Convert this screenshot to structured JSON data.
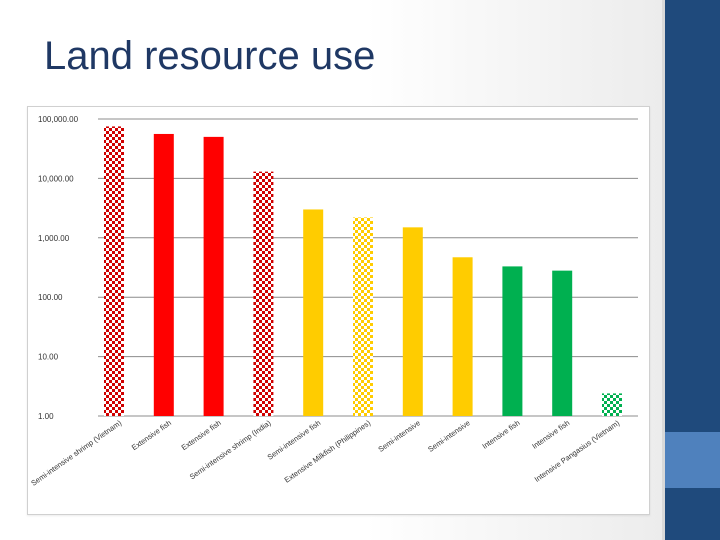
{
  "slide": {
    "title": "Land resource use"
  },
  "chart_data": {
    "type": "bar",
    "scale": "log",
    "ylim": [
      1,
      100000
    ],
    "grid": true,
    "yticks": [
      "100,000.00",
      "10,000.00",
      "1,000.00",
      "100.00",
      "10.00",
      "1.00"
    ],
    "ytick_values": [
      100000,
      10000,
      1000,
      100,
      10,
      1
    ],
    "categories": [
      "Semi-intensive shrimp (Vietnam)",
      "Extensive fish",
      "Extensive fish",
      "Semi-intensive shrimp (India)",
      "Semi-intensive fish",
      "Extensive Milkfish (Philippines)",
      "Semi-intensive",
      "Semi-intensive",
      "Intensive fish",
      "Intensive fish",
      "Intensive Pangasius (Vietnam)"
    ],
    "values": [
      75000,
      56000,
      50000,
      13000,
      3000,
      2200,
      1500,
      470,
      330,
      280,
      2.4
    ],
    "colors": [
      "#d00000",
      "#ff0000",
      "#ff0000",
      "#d00000",
      "#ffcc00",
      "#ffcc00",
      "#ffcc00",
      "#ffcc00",
      "#00b050",
      "#00b050",
      "#00b050"
    ],
    "patterns": [
      "checker",
      "solid",
      "solid",
      "checker",
      "solid",
      "checker",
      "solid",
      "solid",
      "solid",
      "solid",
      "checker"
    ]
  }
}
